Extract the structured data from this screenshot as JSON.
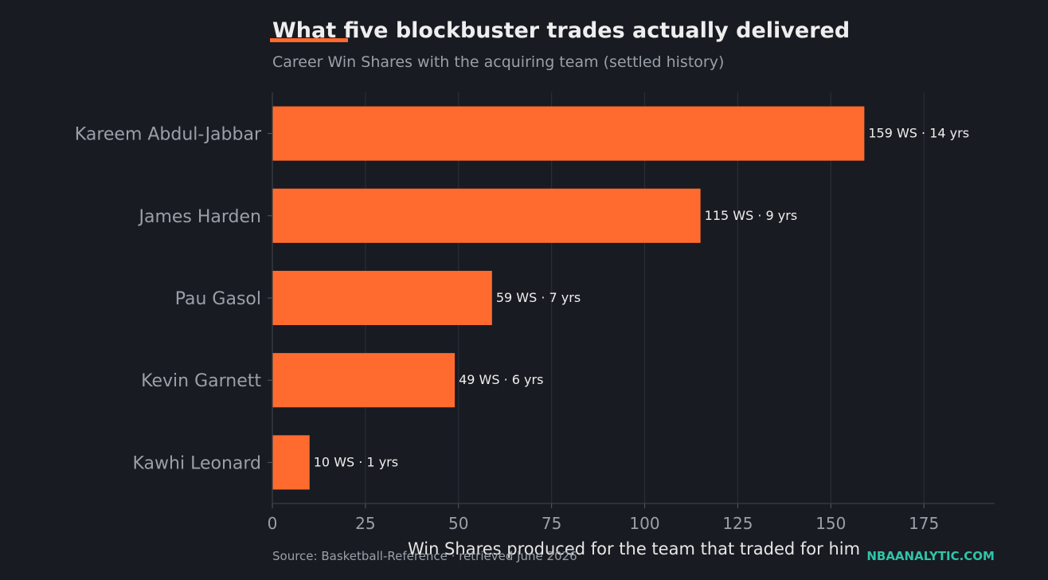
{
  "chart_data": {
    "type": "bar",
    "orientation": "horizontal",
    "title": "What five blockbuster trades actually delivered",
    "subtitle": "Career Win Shares with the acquiring team (settled history)",
    "xlabel": "Win Shares produced for the team that traded for him",
    "ylabel": "",
    "categories": [
      "Kareem Abdul-Jabbar",
      "James Harden",
      "Pau Gasol",
      "Kevin Garnett",
      "Kawhi Leonard"
    ],
    "values": [
      159,
      115,
      59,
      49,
      10
    ],
    "data_labels": [
      "159 WS · 14 yrs",
      "115 WS · 9 yrs",
      "59 WS · 7 yrs",
      "49 WS · 6 yrs",
      "10 WS · 1 yrs"
    ],
    "xlim": [
      0,
      194
    ],
    "xticks": [
      0,
      25,
      50,
      75,
      100,
      125,
      150,
      175
    ],
    "grid": true,
    "legend": "none"
  },
  "footer": {
    "source": "Source: Basketball-Reference · retrieved June 2026",
    "brand": "NBAANALYTIC.COM"
  },
  "colors": {
    "background": "#181b21",
    "bar": "#ff6b2e",
    "accent": "#ff6b2e",
    "title": "#eeeeee",
    "muted": "#9aa0a8",
    "grid": "#2a2e36",
    "brand": "#2ec4a9"
  }
}
